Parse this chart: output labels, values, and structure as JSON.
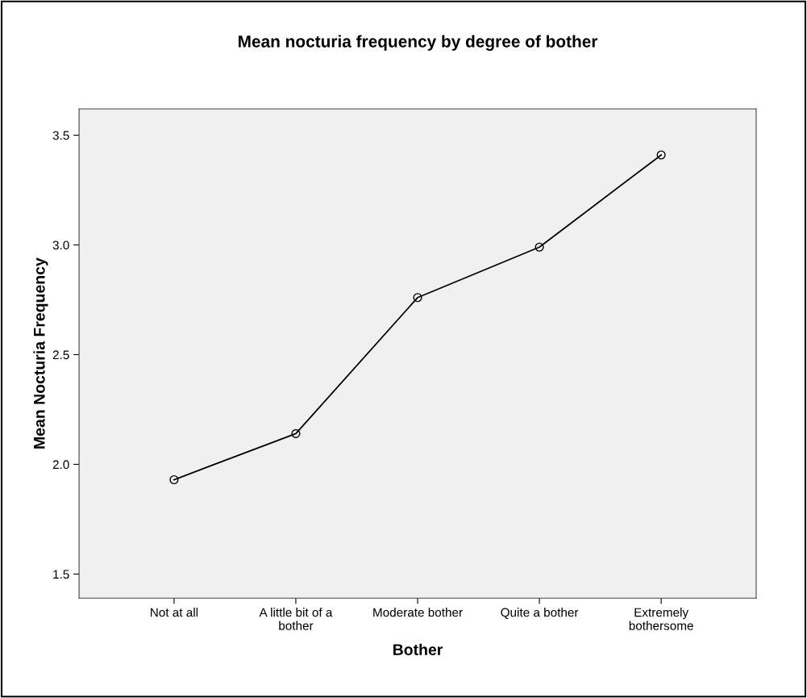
{
  "chart_data": {
    "type": "line",
    "title": "Mean nocturia frequency by degree of bother",
    "xlabel": "Bother",
    "ylabel": "Mean Nocturia Frequency",
    "categories": [
      "Not at all",
      "A little bit of a\nbother",
      "Moderate bother",
      "Quite a bother",
      "Extremely\nbothersome"
    ],
    "series": [
      {
        "color": "#000000",
        "values": [
          1.93,
          2.14,
          2.76,
          2.99,
          3.41
        ]
      }
    ],
    "ylim": [
      1.39,
      3.62
    ],
    "yticks": [
      {
        "value": 1.5,
        "label": "1.5"
      },
      {
        "value": 2.0,
        "label": "2.0"
      },
      {
        "value": 2.5,
        "label": "2.5"
      },
      {
        "value": 3.0,
        "label": "3.0"
      },
      {
        "value": 3.5,
        "label": "3.5"
      }
    ],
    "marker": "circle",
    "line_style": "solid"
  }
}
